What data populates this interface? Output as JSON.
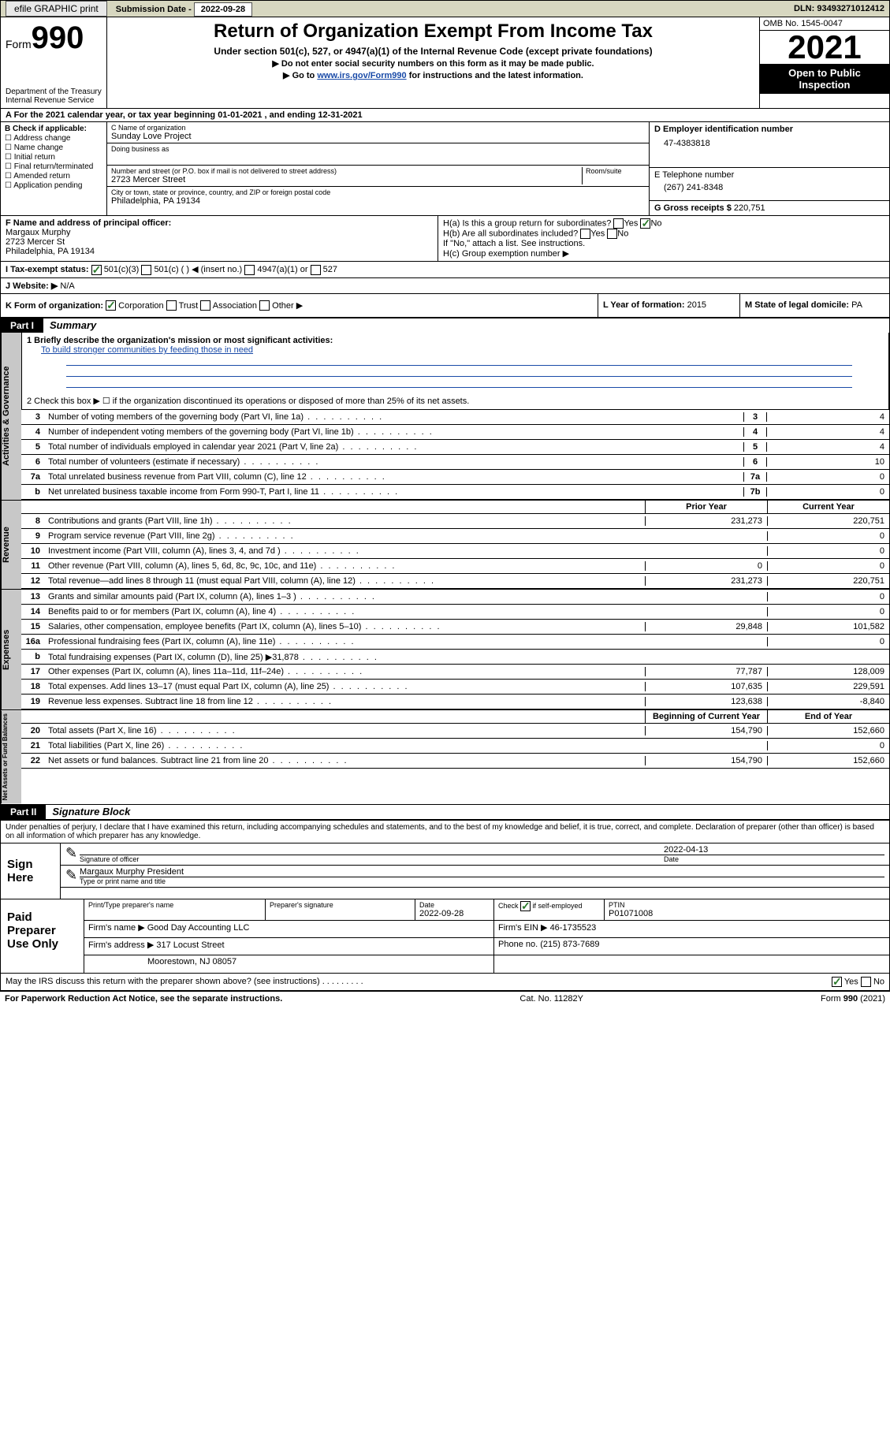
{
  "top": {
    "efile": "efile GRAPHIC print",
    "sub_lbl": "Submission Date",
    "sub_date": "2022-09-28",
    "dln_lbl": "DLN:",
    "dln": "93493271012412"
  },
  "header": {
    "form_word": "Form",
    "form_num": "990",
    "dept": "Department of the Treasury",
    "irs": "Internal Revenue Service",
    "title": "Return of Organization Exempt From Income Tax",
    "sub1": "Under section 501(c), 527, or 4947(a)(1) of the Internal Revenue Code (except private foundations)",
    "sub2a": "▶ Do not enter social security numbers on this form as it may be made public.",
    "sub2b_pre": "▶ Go to ",
    "sub2b_link": "www.irs.gov/Form990",
    "sub2b_post": " for instructions and the latest information.",
    "omb": "OMB No. 1545-0047",
    "year": "2021",
    "opi": "Open to Public Inspection"
  },
  "rowA": {
    "text": "A For the 2021 calendar year, or tax year beginning 01-01-2021   , and ending 12-31-2021"
  },
  "B": {
    "hdr": "B Check if applicable:",
    "o1": "Address change",
    "o2": "Name change",
    "o3": "Initial return",
    "o4": "Final return/terminated",
    "o5": "Amended return",
    "o6": "Application pending"
  },
  "C": {
    "name_lbl": "C Name of organization",
    "name": "Sunday Love Project",
    "dba_lbl": "Doing business as",
    "street_lbl": "Number and street (or P.O. box if mail is not delivered to street address)",
    "room_lbl": "Room/suite",
    "street": "2723 Mercer Street",
    "city_lbl": "City or town, state or province, country, and ZIP or foreign postal code",
    "city": "Philadelphia, PA  19134"
  },
  "D": {
    "lbl": "D Employer identification number",
    "val": "47-4383818"
  },
  "E": {
    "lbl": "E Telephone number",
    "val": "(267) 241-8348"
  },
  "G": {
    "lbl": "G Gross receipts $",
    "val": "220,751"
  },
  "F": {
    "lbl": "F Name and address of principal officer:",
    "name": "Margaux Murphy",
    "addr1": "2723 Mercer St",
    "addr2": "Philadelphia, PA  19134"
  },
  "H": {
    "a": "H(a)  Is this a group return for subordinates?",
    "b": "H(b)  Are all subordinates included?",
    "note": "If \"No,\" attach a list. See instructions.",
    "c": "H(c)  Group exemption number ▶",
    "yes": "Yes",
    "no": "No"
  },
  "I": {
    "lbl": "I   Tax-exempt status:",
    "o1": "501(c)(3)",
    "o2": "501(c) (  ) ◀ (insert no.)",
    "o3": "4947(a)(1) or",
    "o4": "527"
  },
  "J": {
    "lbl": "J   Website: ▶",
    "val": "N/A"
  },
  "K": {
    "lbl": "K Form of organization:",
    "o1": "Corporation",
    "o2": "Trust",
    "o3": "Association",
    "o4": "Other ▶"
  },
  "L": {
    "lbl": "L Year of formation:",
    "val": "2015"
  },
  "M": {
    "lbl": "M State of legal domicile:",
    "val": "PA"
  },
  "parts": {
    "p1": "Part I",
    "p1t": "Summary",
    "p2": "Part II",
    "p2t": "Signature Block"
  },
  "summary": {
    "l1a": "1   Briefly describe the organization's mission or most significant activities:",
    "l1b": "To build stronger communities by feeding those in need",
    "l2": "2   Check this box ▶ ☐  if the organization discontinued its operations or disposed of more than 25% of its net assets.",
    "side1": "Activities & Governance",
    "side2": "Revenue",
    "side3": "Expenses",
    "side4": "Net Assets or Fund Balances",
    "rows_ag": [
      {
        "n": "3",
        "t": "Number of voting members of the governing body (Part VI, line 1a)",
        "ln": "3",
        "v": "4"
      },
      {
        "n": "4",
        "t": "Number of independent voting members of the governing body (Part VI, line 1b)",
        "ln": "4",
        "v": "4"
      },
      {
        "n": "5",
        "t": "Total number of individuals employed in calendar year 2021 (Part V, line 2a)",
        "ln": "5",
        "v": "4"
      },
      {
        "n": "6",
        "t": "Total number of volunteers (estimate if necessary)",
        "ln": "6",
        "v": "10"
      },
      {
        "n": "7a",
        "t": "Total unrelated business revenue from Part VIII, column (C), line 12",
        "ln": "7a",
        "v": "0"
      },
      {
        "n": "b",
        "t": "Net unrelated business taxable income from Form 990-T, Part I, line 11",
        "ln": "7b",
        "v": "0"
      }
    ],
    "col_py": "Prior Year",
    "col_cy": "Current Year",
    "rows_rev": [
      {
        "n": "8",
        "t": "Contributions and grants (Part VIII, line 1h)",
        "py": "231,273",
        "cy": "220,751"
      },
      {
        "n": "9",
        "t": "Program service revenue (Part VIII, line 2g)",
        "py": "",
        "cy": "0"
      },
      {
        "n": "10",
        "t": "Investment income (Part VIII, column (A), lines 3, 4, and 7d )",
        "py": "",
        "cy": "0"
      },
      {
        "n": "11",
        "t": "Other revenue (Part VIII, column (A), lines 5, 6d, 8c, 9c, 10c, and 11e)",
        "py": "0",
        "cy": "0"
      },
      {
        "n": "12",
        "t": "Total revenue—add lines 8 through 11 (must equal Part VIII, column (A), line 12)",
        "py": "231,273",
        "cy": "220,751"
      }
    ],
    "rows_exp": [
      {
        "n": "13",
        "t": "Grants and similar amounts paid (Part IX, column (A), lines 1–3 )",
        "py": "",
        "cy": "0"
      },
      {
        "n": "14",
        "t": "Benefits paid to or for members (Part IX, column (A), line 4)",
        "py": "",
        "cy": "0"
      },
      {
        "n": "15",
        "t": "Salaries, other compensation, employee benefits (Part IX, column (A), lines 5–10)",
        "py": "29,848",
        "cy": "101,582"
      },
      {
        "n": "16a",
        "t": "Professional fundraising fees (Part IX, column (A), line 11e)",
        "py": "",
        "cy": "0"
      },
      {
        "n": "b",
        "t": "Total fundraising expenses (Part IX, column (D), line 25) ▶31,878",
        "py": "SHADE",
        "cy": "SHADE"
      },
      {
        "n": "17",
        "t": "Other expenses (Part IX, column (A), lines 11a–11d, 11f–24e)",
        "py": "77,787",
        "cy": "128,009"
      },
      {
        "n": "18",
        "t": "Total expenses. Add lines 13–17 (must equal Part IX, column (A), line 25)",
        "py": "107,635",
        "cy": "229,591"
      },
      {
        "n": "19",
        "t": "Revenue less expenses. Subtract line 18 from line 12",
        "py": "123,638",
        "cy": "-8,840"
      }
    ],
    "col_boy": "Beginning of Current Year",
    "col_eoy": "End of Year",
    "rows_na": [
      {
        "n": "20",
        "t": "Total assets (Part X, line 16)",
        "py": "154,790",
        "cy": "152,660"
      },
      {
        "n": "21",
        "t": "Total liabilities (Part X, line 26)",
        "py": "",
        "cy": "0"
      },
      {
        "n": "22",
        "t": "Net assets or fund balances. Subtract line 21 from line 20",
        "py": "154,790",
        "cy": "152,660"
      }
    ]
  },
  "sig": {
    "decl": "Under penalties of perjury, I declare that I have examined this return, including accompanying schedules and statements, and to the best of my knowledge and belief, it is true, correct, and complete. Declaration of preparer (other than officer) is based on all information of which preparer has any knowledge.",
    "sign_here": "Sign Here",
    "sig_off": "Signature of officer",
    "date_lbl": "Date",
    "sig_date": "2022-04-13",
    "name_title": "Margaux Murphy President",
    "name_lbl": "Type or print name and title",
    "paid": "Paid Preparer Use Only",
    "pt_name_lbl": "Print/Type preparer's name",
    "pt_sig_lbl": "Preparer's signature",
    "pt_date_lbl": "Date",
    "pt_date": "2022-09-28",
    "pt_chk_lbl": "Check ☑ if self-employed",
    "ptin_lbl": "PTIN",
    "ptin": "P01071008",
    "firm_name_lbl": "Firm's name    ▶",
    "firm_name": "Good Day Accounting LLC",
    "firm_ein_lbl": "Firm's EIN ▶",
    "firm_ein": "46-1735523",
    "firm_addr_lbl": "Firm's address ▶",
    "firm_addr1": "317 Locust Street",
    "firm_addr2": "Moorestown, NJ  08057",
    "phone_lbl": "Phone no.",
    "phone": "(215) 873-7689",
    "discuss": "May the IRS discuss this return with the preparer shown above? (see instructions)",
    "yes": "Yes",
    "no": "No"
  },
  "footer": {
    "pra": "For Paperwork Reduction Act Notice, see the separate instructions.",
    "cat": "Cat. No. 11282Y",
    "form": "Form 990 (2021)"
  }
}
